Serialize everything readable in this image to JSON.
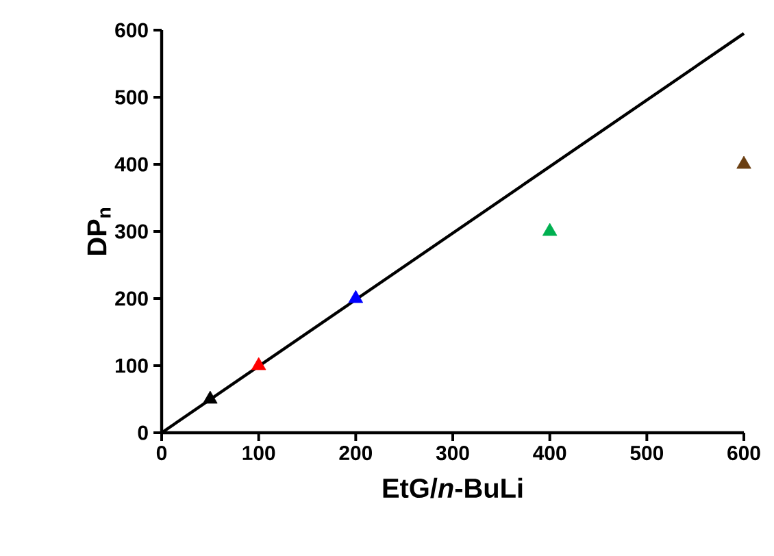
{
  "chart_data": {
    "type": "scatter",
    "xlabel": "EtG/*n*-BuLi",
    "ylabel": "DP$_{n}$",
    "xlim": [
      0,
      600
    ],
    "ylim": [
      0,
      600
    ],
    "xticks": [
      0,
      100,
      200,
      300,
      400,
      500,
      600
    ],
    "yticks": [
      0,
      100,
      200,
      300,
      400,
      500,
      600
    ],
    "grid": false,
    "marker": "triangle",
    "series": [
      {
        "type": "line",
        "color": "#000000",
        "x": [
          0,
          600
        ],
        "values": [
          0,
          595
        ],
        "marker": "none"
      },
      {
        "x": [
          50,
          100,
          200,
          400,
          600
        ],
        "values": [
          50,
          100,
          200,
          300,
          400
        ],
        "colors": [
          "#000000",
          "#ff0000",
          "#0000ff",
          "#00b050",
          "#6b3f12"
        ]
      }
    ]
  }
}
